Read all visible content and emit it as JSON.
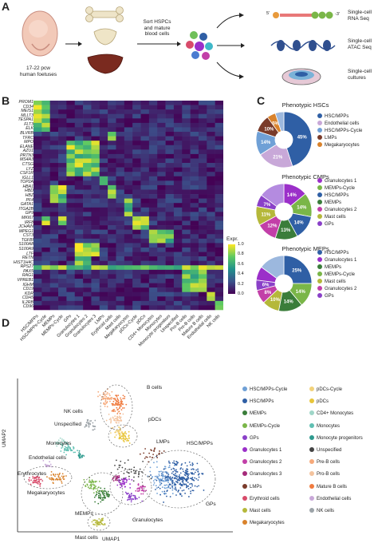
{
  "panelA": {
    "letter": "A",
    "foetus_label": "17-22 pcw\nhuman foetuses",
    "sort_label": "Sort HSPCs\nand mature\nblood cells",
    "rna_seq_label": "Single-cell\nRNA Seq",
    "atac_label": "Single-cell\nATAC Seq",
    "culture_label": "Single-cell\ncultures",
    "five_prime": "5'",
    "three_prime": "-3'",
    "aaa": "A A A"
  },
  "panelB": {
    "letter": "B",
    "genes": [
      "PROM1",
      "CD34",
      "MEIS1",
      "MLLT3",
      "TESPA1",
      "FLT3",
      "ELK",
      "BLVRB",
      "TFRC",
      "MPO",
      "ELANE",
      "AZU1",
      "PRTN3",
      "MS4A3",
      "CTSG",
      "LYZ",
      "CSF1R",
      "IGLL1",
      "TOP2A",
      "HBA1",
      "HBD",
      "HBZ",
      "PF4",
      "GATA1",
      "ITGA2B",
      "GP9",
      "MKI67",
      "IRF8",
      "JCHAIN",
      "MPEG1",
      "CST3",
      "TGFBI",
      "S100A8",
      "S100A9",
      "LTF",
      "RETN",
      "HIST1H4C",
      "RPS27",
      "PAX5",
      "RAG1",
      "VPREB1",
      "IGHM",
      "CD19",
      "KDR",
      "CDH5",
      "IL2RB",
      "CD96"
    ],
    "cell_types": [
      "HSC/MPPs",
      "HSC/MPPs-Cycle",
      "MEMPs",
      "MEMPs-Cycle",
      "GPs",
      "Granulocytes 1",
      "Granulocytes 2",
      "Granulocytes 3",
      "LMPs",
      "Erythroid cells",
      "Mast cells",
      "Megakaryocytes",
      "pDCs-Cycle",
      "pDCs",
      "CD4+ Monocytes",
      "Monocytes",
      "Monocyte progenitors",
      "Unspecified",
      "Pro-B cells",
      "Pre-B cells",
      "Mature B cells",
      "Endothelial cells",
      "NK cells"
    ],
    "colorbar_title": "Expr.",
    "colorbar_ticks": [
      "1.0",
      "0.8",
      "0.6",
      "0.4",
      "0.2",
      "0.0"
    ]
  },
  "panelC": {
    "letter": "C",
    "charts": [
      {
        "title": "Phenotypic HSCs",
        "slices": [
          {
            "name": "HSC/MPPs",
            "value": 45,
            "label": "45%",
            "color": "#2f5fa5"
          },
          {
            "name": "Endothelial cells",
            "value": 21,
            "label": "21%",
            "color": "#c8a8d8"
          },
          {
            "name": "HSC/MPPs-Cycle",
            "value": 14,
            "label": "14%",
            "color": "#6fa0d6"
          },
          {
            "name": "LMPs",
            "value": 10,
            "label": "10%",
            "color": "#7a3b2a"
          },
          {
            "name": "Megakaryocytes",
            "value": 5,
            "label": "5%",
            "color": "#d9822b"
          },
          {
            "name": "other",
            "value": 5,
            "label": "",
            "color": "#9cb8de"
          }
        ]
      },
      {
        "title": "Phenotypic CMPs",
        "slices": [
          {
            "name": "Granulocytes 1",
            "value": 14,
            "label": "14%",
            "color": "#9b2fc9"
          },
          {
            "name": "MEMPs-Cycle",
            "value": 14,
            "label": "14%",
            "color": "#7ab648"
          },
          {
            "name": "HSC/MPPs",
            "value": 14,
            "label": "14%",
            "color": "#2f5fa5"
          },
          {
            "name": "MEMPs",
            "value": 13,
            "label": "13%",
            "color": "#3a7d3a"
          },
          {
            "name": "Granulocytes 2",
            "value": 12,
            "label": "12%",
            "color": "#c23fa8"
          },
          {
            "name": "Mast cells",
            "value": 11,
            "label": "11%",
            "color": "#b5b83a"
          },
          {
            "name": "GPs",
            "value": 7,
            "label": "7%",
            "color": "#8a40c8"
          },
          {
            "name": "other",
            "value": 15,
            "label": "",
            "color": "#b48be0"
          }
        ]
      },
      {
        "title": "Phenotypic MEPs",
        "slices": [
          {
            "name": "HSC/MPPs",
            "value": 25,
            "label": "25%",
            "color": "#2f5fa5"
          },
          {
            "name": "MEMPs-Cycle",
            "value": 14,
            "label": "14%",
            "color": "#7ab648"
          },
          {
            "name": "MEMPs",
            "value": 14,
            "label": "14%",
            "color": "#3a7d3a"
          },
          {
            "name": "Mast cells",
            "value": 10,
            "label": "10%",
            "color": "#b5b83a"
          },
          {
            "name": "Granulocytes 2",
            "value": 8,
            "label": "8%",
            "color": "#c23fa8"
          },
          {
            "name": "GPs",
            "value": 6,
            "label": "6%",
            "color": "#8a40c8"
          },
          {
            "name": "Granulocytes 1",
            "value": 8,
            "label": "",
            "color": "#9b2fc9"
          },
          {
            "name": "other",
            "value": 15,
            "label": "",
            "color": "#9cb8de"
          }
        ]
      }
    ],
    "legends": [
      [
        {
          "label": "HSC/MPPs",
          "color": "#2f5fa5"
        },
        {
          "label": "Endothelial cells",
          "color": "#c8a8d8"
        },
        {
          "label": "HSC/MPPs-Cycle",
          "color": "#6fa0d6"
        },
        {
          "label": "LMPs",
          "color": "#7a3b2a"
        },
        {
          "label": "Megakaryocytes",
          "color": "#d9822b"
        }
      ],
      [
        {
          "label": "Granulocytes 1",
          "color": "#9b2fc9"
        },
        {
          "label": "MEMPs-Cycle",
          "color": "#7ab648"
        },
        {
          "label": "HSC/MPPs",
          "color": "#2f5fa5"
        },
        {
          "label": "MEMPs",
          "color": "#3a7d3a"
        },
        {
          "label": "Granulocytes 2",
          "color": "#c23fa8"
        },
        {
          "label": "Mast cells",
          "color": "#b5b83a"
        },
        {
          "label": "GPs",
          "color": "#8a40c8"
        }
      ],
      [
        {
          "label": "HSC/MPPs",
          "color": "#2f5fa5"
        },
        {
          "label": "Granulocytes 1",
          "color": "#9b2fc9"
        },
        {
          "label": "MEMPs",
          "color": "#3a7d3a"
        },
        {
          "label": "MEMPs-Cycle",
          "color": "#7ab648"
        },
        {
          "label": "Mast cells",
          "color": "#b5b83a"
        },
        {
          "label": "Granulocytes 2",
          "color": "#c23fa8"
        },
        {
          "label": "GPs",
          "color": "#8a40c8"
        }
      ]
    ]
  },
  "panelD": {
    "letter": "D",
    "xlabel": "UMAP1",
    "ylabel": "UMAP2",
    "cluster_labels": [
      "B cells",
      "pDCs",
      "NK cells",
      "Unspecified",
      "LMPs",
      "HSC/MPPs",
      "Monocytes",
      "Endothelial cells",
      "Erythrocytes",
      "Megakaryocytes",
      "MEMPs",
      "GPs",
      "Granulocytes",
      "Mast cells"
    ],
    "legend_left": [
      {
        "label": "HSC/MPPs-Cycle",
        "color": "#6fa0d6"
      },
      {
        "label": "HSC/MPPs",
        "color": "#2f5fa5"
      },
      {
        "label": "MEMPs",
        "color": "#3a7d3a"
      },
      {
        "label": "MEMPs-Cycle",
        "color": "#7ab648"
      },
      {
        "label": "GPs",
        "color": "#8a40c8"
      },
      {
        "label": "Granulocytes 1",
        "color": "#9b2fc9"
      },
      {
        "label": "Granulocytes 2",
        "color": "#c23fa8"
      },
      {
        "label": "Granulocytes 3",
        "color": "#a52a7a"
      },
      {
        "label": "LMPs",
        "color": "#7a3b2a"
      },
      {
        "label": "Erythroid cells",
        "color": "#d84b6a"
      },
      {
        "label": "Mast cells",
        "color": "#b5b83a"
      },
      {
        "label": "Megakaryocytes",
        "color": "#d9822b"
      }
    ],
    "legend_right": [
      {
        "label": "pDCs-Cycle",
        "color": "#f2d27a"
      },
      {
        "label": "pDCs",
        "color": "#e8c53a"
      },
      {
        "label": "CD4+ Monocytes",
        "color": "#9fd6c8"
      },
      {
        "label": "Monocytes",
        "color": "#5fbfb2"
      },
      {
        "label": "Monocyte progenitors",
        "color": "#2e9a8e"
      },
      {
        "label": "Unspecified",
        "color": "#444444"
      },
      {
        "label": "Pre-B cells",
        "color": "#f6a97a"
      },
      {
        "label": "Pro-B cells",
        "color": "#f3c39e"
      },
      {
        "label": "Mature B cells",
        "color": "#f07b3f"
      },
      {
        "label": "Endothelial cells",
        "color": "#c8a8d8"
      },
      {
        "label": "NK cells",
        "color": "#9ca3a8"
      }
    ]
  }
}
